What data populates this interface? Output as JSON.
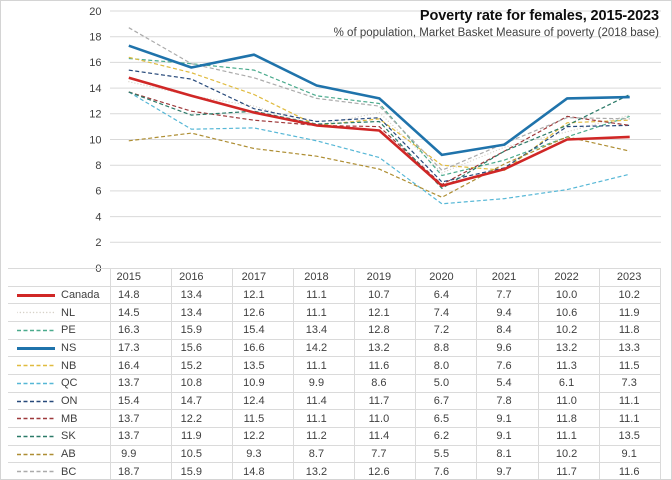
{
  "window": {
    "background": "#ffffff",
    "border_color": "#d4d4d4",
    "grid_color": "#d9d9d9",
    "text_color": "#404040"
  },
  "chart_data": {
    "type": "line",
    "title": "Poverty rate for females, 2015-2023",
    "subtitle": "% of population, Market Basket Measure of poverty (2018 base)",
    "categories": [
      "2015",
      "2016",
      "2017",
      "2018",
      "2019",
      "2020",
      "2021",
      "2022",
      "2023"
    ],
    "xlabel": "",
    "ylabel": "",
    "ylim": [
      0,
      20
    ],
    "ytick_step": 2,
    "yticks": [
      0,
      2,
      4,
      6,
      8,
      10,
      12,
      14,
      16,
      18,
      20
    ],
    "grid": true,
    "legend_position": "data-table-row-keys",
    "series": [
      {
        "name": "Canada",
        "color": "#d02726",
        "style": "solid",
        "width": 2.6,
        "values": [
          14.8,
          13.4,
          12.1,
          11.1,
          10.7,
          6.4,
          7.7,
          10.0,
          10.2
        ]
      },
      {
        "name": "NL",
        "color": "#d6d1c7",
        "style": "dotted",
        "width": 1.2,
        "values": [
          14.5,
          13.4,
          12.6,
          11.1,
          12.1,
          7.4,
          9.4,
          10.6,
          11.9
        ]
      },
      {
        "name": "PE",
        "color": "#4bab8d",
        "style": "dashed",
        "width": 1.2,
        "values": [
          16.3,
          15.9,
          15.4,
          13.4,
          12.8,
          7.2,
          8.4,
          10.2,
          11.8
        ]
      },
      {
        "name": "NS",
        "color": "#1f73ab",
        "style": "solid",
        "width": 2.6,
        "values": [
          17.3,
          15.6,
          16.6,
          14.2,
          13.2,
          8.8,
          9.6,
          13.2,
          13.3
        ]
      },
      {
        "name": "NB",
        "color": "#e0bb3f",
        "style": "dashed",
        "width": 1.2,
        "values": [
          16.4,
          15.2,
          13.5,
          11.1,
          11.6,
          8.0,
          7.6,
          11.3,
          11.5
        ]
      },
      {
        "name": "QC",
        "color": "#56b7d6",
        "style": "dashed",
        "width": 1.2,
        "values": [
          13.7,
          10.8,
          10.9,
          9.9,
          8.6,
          5.0,
          5.4,
          6.1,
          7.3
        ]
      },
      {
        "name": "ON",
        "color": "#27497a",
        "style": "dashed",
        "width": 1.2,
        "values": [
          15.4,
          14.7,
          12.4,
          11.4,
          11.7,
          6.7,
          7.8,
          11.0,
          11.1
        ]
      },
      {
        "name": "MB",
        "color": "#9e393b",
        "style": "dashed",
        "width": 1.2,
        "values": [
          13.7,
          12.2,
          11.5,
          11.1,
          11.0,
          6.5,
          9.1,
          11.8,
          11.1
        ]
      },
      {
        "name": "SK",
        "color": "#2b7a68",
        "style": "dashed",
        "width": 1.2,
        "values": [
          13.7,
          11.9,
          12.2,
          11.2,
          11.4,
          6.2,
          9.1,
          11.1,
          13.5
        ]
      },
      {
        "name": "AB",
        "color": "#ae8e33",
        "style": "dashed",
        "width": 1.2,
        "values": [
          9.9,
          10.5,
          9.3,
          8.7,
          7.7,
          5.5,
          8.1,
          10.2,
          9.1
        ]
      },
      {
        "name": "BC",
        "color": "#ababab",
        "style": "dashed",
        "width": 1.2,
        "values": [
          18.7,
          15.9,
          14.8,
          13.2,
          12.6,
          7.6,
          9.7,
          11.7,
          11.6
        ]
      }
    ]
  }
}
